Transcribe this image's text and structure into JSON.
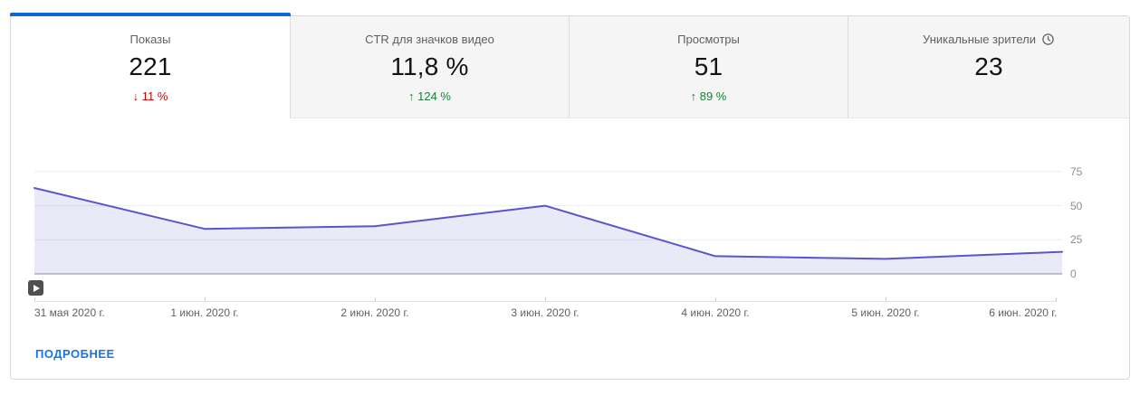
{
  "tabs": [
    {
      "label": "Показы",
      "value": "221",
      "delta_arrow": "↓",
      "delta": "11 %",
      "trend": "down",
      "active": true
    },
    {
      "label": "CTR для значков видео",
      "value": "11,8 %",
      "delta_arrow": "↑",
      "delta": "124 %",
      "trend": "up",
      "active": false
    },
    {
      "label": "Просмотры",
      "value": "51",
      "delta_arrow": "↑",
      "delta": "89 %",
      "trend": "up",
      "active": false
    },
    {
      "label": "Уникальные зрители",
      "value": "23",
      "delta_arrow": "",
      "delta": "",
      "trend": "",
      "active": false,
      "clock_icon": true
    }
  ],
  "chart_data": {
    "type": "area",
    "x_labels": [
      "31 мая 2020 г.",
      "1 июн. 2020 г.",
      "2 июн. 2020 г.",
      "3 июн. 2020 г.",
      "4 июн. 2020 г.",
      "5 июн. 2020 г.",
      "6 июн. 2020 г."
    ],
    "series": [
      {
        "name": "Показы",
        "values": [
          63,
          33,
          35,
          50,
          13,
          11,
          16
        ]
      }
    ],
    "ylim": [
      0,
      87.5
    ],
    "yticks": [
      0,
      25,
      50,
      75
    ],
    "grid": "horizontal",
    "legend": false,
    "y_axis_position": "right",
    "line_color": "#5a55c8",
    "fill_color": "rgba(90,85,200,0.13)",
    "markers": [
      {
        "type": "video-published",
        "x_index": 0
      }
    ]
  },
  "footer": {
    "details_label": "ПОДРОБНЕЕ"
  },
  "colors": {
    "active_tab_indicator": "#1266d4",
    "positive": "#188038",
    "negative": "#cc0000",
    "link": "#1a73e8",
    "inactive_tab_bg": "#f5f5f5"
  }
}
